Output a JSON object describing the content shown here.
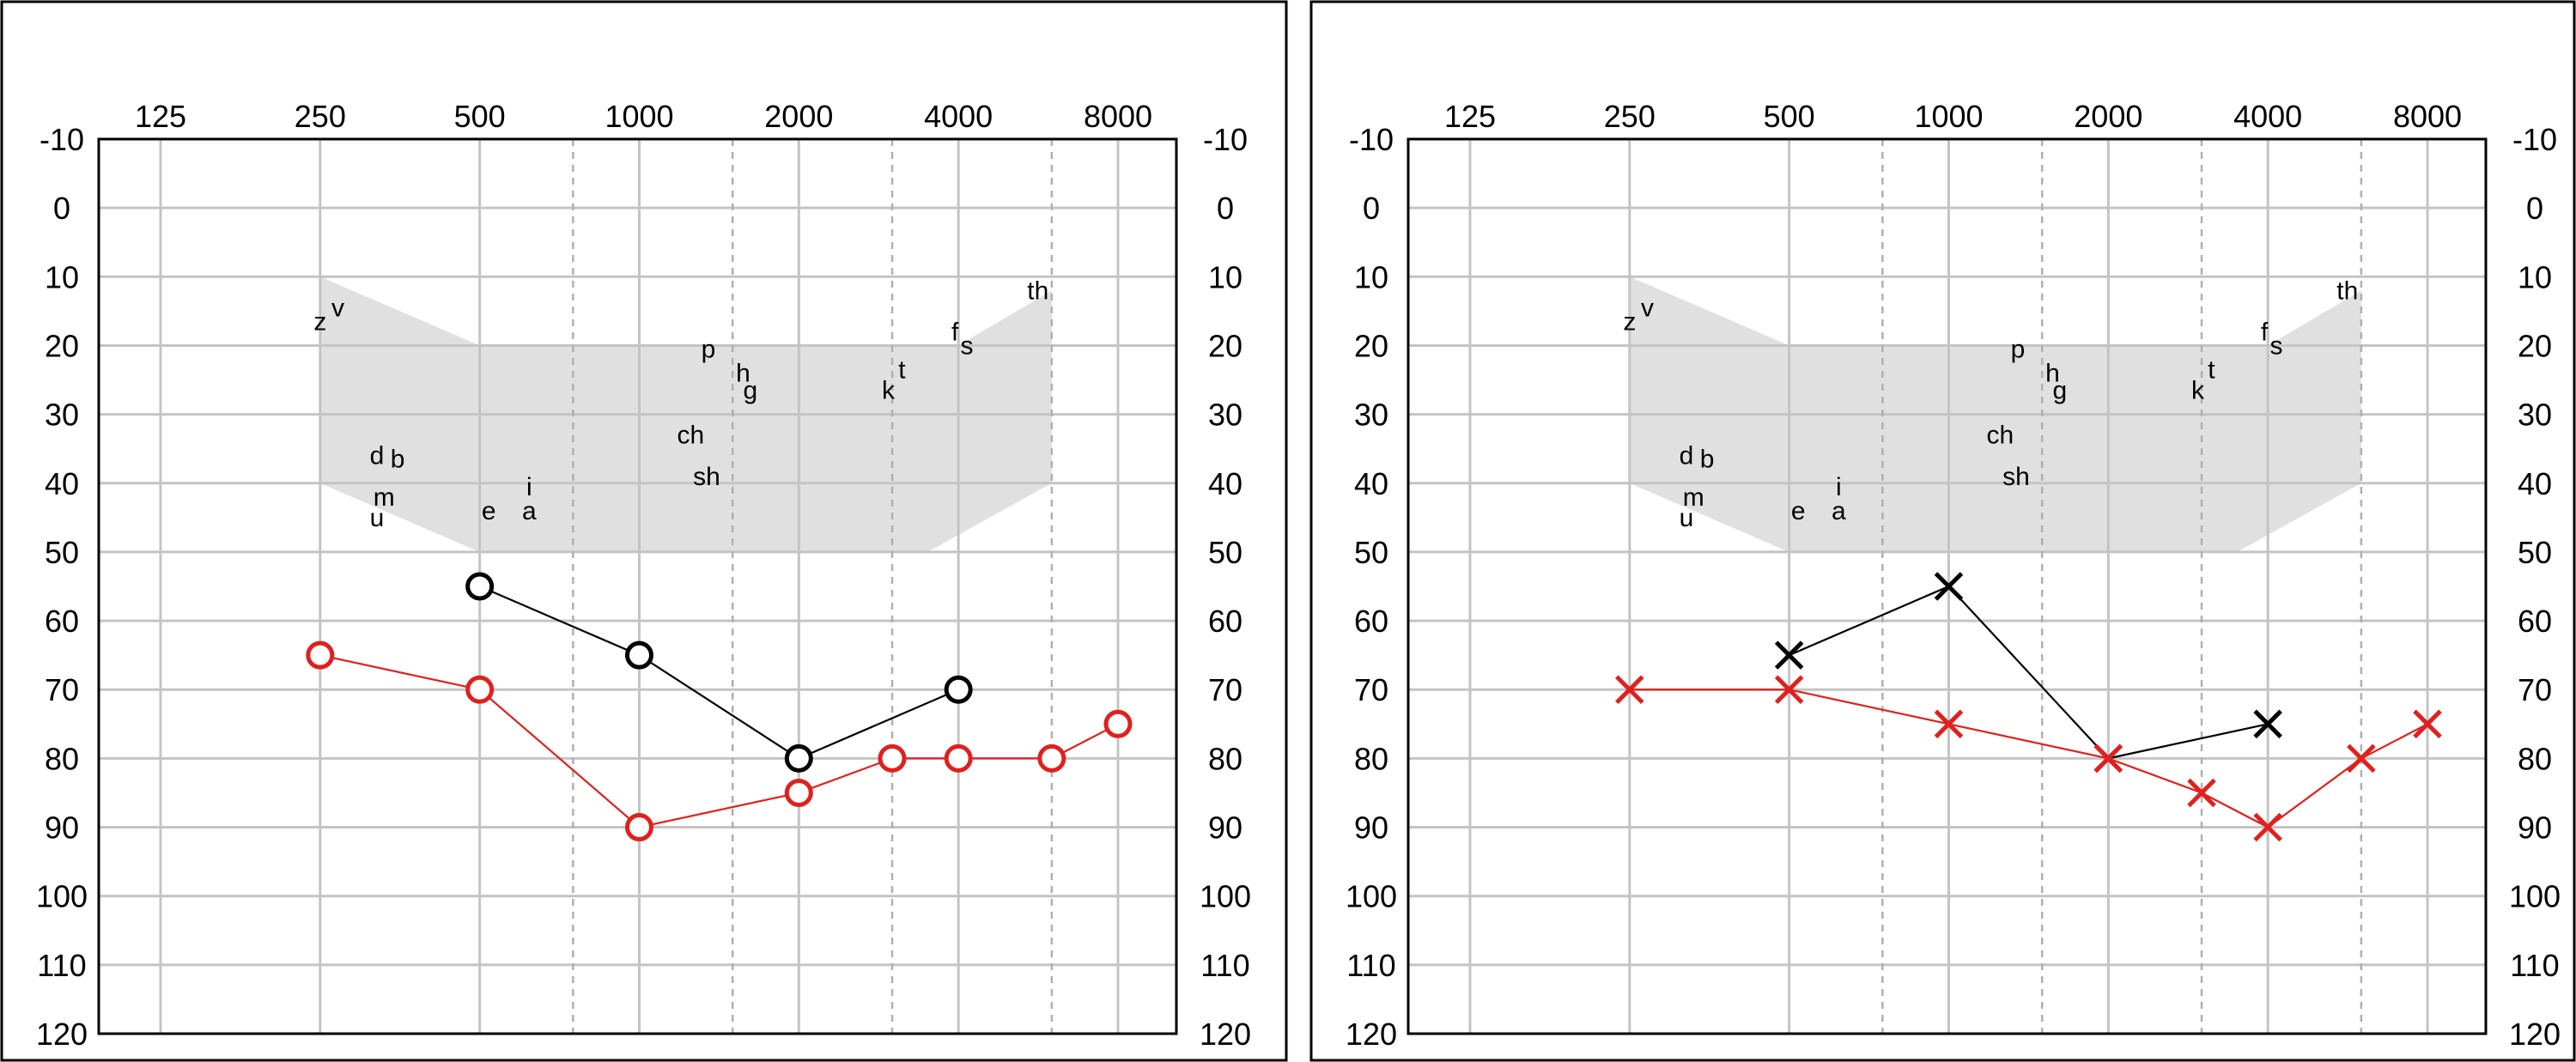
{
  "chart_data": [
    {
      "type": "line",
      "title": "",
      "xlabel": "",
      "ylabel": "",
      "x_scale": "log2",
      "x_ticks": [
        "125",
        "250",
        "500",
        "1000",
        "2000",
        "4000",
        "8000"
      ],
      "x_tick_values": [
        125,
        250,
        500,
        1000,
        2000,
        4000,
        8000
      ],
      "x_minor_dashed": [
        750,
        1500,
        3000,
        6000
      ],
      "y_ticks": [
        "-10",
        "0",
        "10",
        "20",
        "30",
        "40",
        "50",
        "60",
        "70",
        "80",
        "90",
        "100",
        "110",
        "120"
      ],
      "y_tick_values": [
        -10,
        0,
        10,
        20,
        30,
        40,
        50,
        60,
        70,
        80,
        90,
        100,
        110,
        120
      ],
      "ylim": [
        -10,
        120
      ],
      "y_inverted": true,
      "grid": true,
      "speech_banana": {
        "color": "#e0e0e0",
        "upper": [
          [
            250,
            10
          ],
          [
            500,
            20
          ],
          [
            4000,
            20
          ],
          [
            6000,
            12
          ]
        ],
        "lower": [
          [
            250,
            40
          ],
          [
            500,
            50
          ],
          [
            3500,
            50
          ],
          [
            6000,
            40
          ]
        ],
        "phonemes": [
          {
            "text": "z",
            "freq": 250,
            "db": 16.5
          },
          {
            "text": "v",
            "freq": 270,
            "db": 14.5
          },
          {
            "text": "d",
            "freq": 320,
            "db": 36
          },
          {
            "text": "b",
            "freq": 350,
            "db": 36.5
          },
          {
            "text": "m",
            "freq": 330,
            "db": 42
          },
          {
            "text": "u",
            "freq": 320,
            "db": 45
          },
          {
            "text": "e",
            "freq": 520,
            "db": 44
          },
          {
            "text": "i",
            "freq": 620,
            "db": 40.5
          },
          {
            "text": "a",
            "freq": 620,
            "db": 44
          },
          {
            "text": "p",
            "freq": 1350,
            "db": 20.5
          },
          {
            "text": "h",
            "freq": 1570,
            "db": 24
          },
          {
            "text": "g",
            "freq": 1620,
            "db": 26.5
          },
          {
            "text": "ch",
            "freq": 1250,
            "db": 33
          },
          {
            "text": "sh",
            "freq": 1340,
            "db": 39
          },
          {
            "text": "k",
            "freq": 2950,
            "db": 26.5
          },
          {
            "text": "t",
            "freq": 3130,
            "db": 23.5
          },
          {
            "text": "f",
            "freq": 3940,
            "db": 18
          },
          {
            "text": "s",
            "freq": 4150,
            "db": 20
          },
          {
            "text": "th",
            "freq": 5650,
            "db": 12
          }
        ]
      },
      "series": [
        {
          "marker": "circle",
          "color": "#000000",
          "x": [
            500,
            1000,
            2000,
            4000
          ],
          "y": [
            55,
            65,
            80,
            70
          ]
        },
        {
          "marker": "circle",
          "color": "#e0201e",
          "x": [
            250,
            500,
            1000,
            2000,
            3000,
            4000,
            6000,
            8000
          ],
          "y": [
            65,
            70,
            90,
            85,
            80,
            80,
            80,
            75
          ]
        }
      ]
    },
    {
      "type": "line",
      "title": "",
      "xlabel": "",
      "ylabel": "",
      "x_scale": "log2",
      "x_ticks": [
        "125",
        "250",
        "500",
        "1000",
        "2000",
        "4000",
        "8000"
      ],
      "x_tick_values": [
        125,
        250,
        500,
        1000,
        2000,
        4000,
        8000
      ],
      "x_minor_dashed": [
        750,
        1500,
        3000,
        6000
      ],
      "y_ticks": [
        "-10",
        "0",
        "10",
        "20",
        "30",
        "40",
        "50",
        "60",
        "70",
        "80",
        "90",
        "100",
        "110",
        "120"
      ],
      "y_tick_values": [
        -10,
        0,
        10,
        20,
        30,
        40,
        50,
        60,
        70,
        80,
        90,
        100,
        110,
        120
      ],
      "ylim": [
        -10,
        120
      ],
      "y_inverted": true,
      "grid": true,
      "speech_banana": {
        "color": "#e0e0e0",
        "upper": [
          [
            250,
            10
          ],
          [
            500,
            20
          ],
          [
            4000,
            20
          ],
          [
            6000,
            12
          ]
        ],
        "lower": [
          [
            250,
            40
          ],
          [
            500,
            50
          ],
          [
            3500,
            50
          ],
          [
            6000,
            40
          ]
        ],
        "phonemes": [
          {
            "text": "z",
            "freq": 250,
            "db": 16.5
          },
          {
            "text": "v",
            "freq": 270,
            "db": 14.5
          },
          {
            "text": "d",
            "freq": 320,
            "db": 36
          },
          {
            "text": "b",
            "freq": 350,
            "db": 36.5
          },
          {
            "text": "m",
            "freq": 330,
            "db": 42
          },
          {
            "text": "u",
            "freq": 320,
            "db": 45
          },
          {
            "text": "e",
            "freq": 520,
            "db": 44
          },
          {
            "text": "i",
            "freq": 620,
            "db": 40.5
          },
          {
            "text": "a",
            "freq": 620,
            "db": 44
          },
          {
            "text": "p",
            "freq": 1350,
            "db": 20.5
          },
          {
            "text": "h",
            "freq": 1570,
            "db": 24
          },
          {
            "text": "g",
            "freq": 1620,
            "db": 26.5
          },
          {
            "text": "ch",
            "freq": 1250,
            "db": 33
          },
          {
            "text": "sh",
            "freq": 1340,
            "db": 39
          },
          {
            "text": "k",
            "freq": 2950,
            "db": 26.5
          },
          {
            "text": "t",
            "freq": 3130,
            "db": 23.5
          },
          {
            "text": "f",
            "freq": 3940,
            "db": 18
          },
          {
            "text": "s",
            "freq": 4150,
            "db": 20
          },
          {
            "text": "th",
            "freq": 5650,
            "db": 12
          }
        ]
      },
      "series": [
        {
          "marker": "cross",
          "color": "#000000",
          "x": [
            500,
            1000,
            2000,
            4000
          ],
          "y": [
            65,
            55,
            80,
            75
          ]
        },
        {
          "marker": "cross",
          "color": "#e0201e",
          "x": [
            250,
            500,
            1000,
            2000,
            3000,
            4000,
            6000,
            8000
          ],
          "y": [
            70,
            70,
            75,
            80,
            85,
            90,
            80,
            75
          ]
        }
      ]
    }
  ]
}
